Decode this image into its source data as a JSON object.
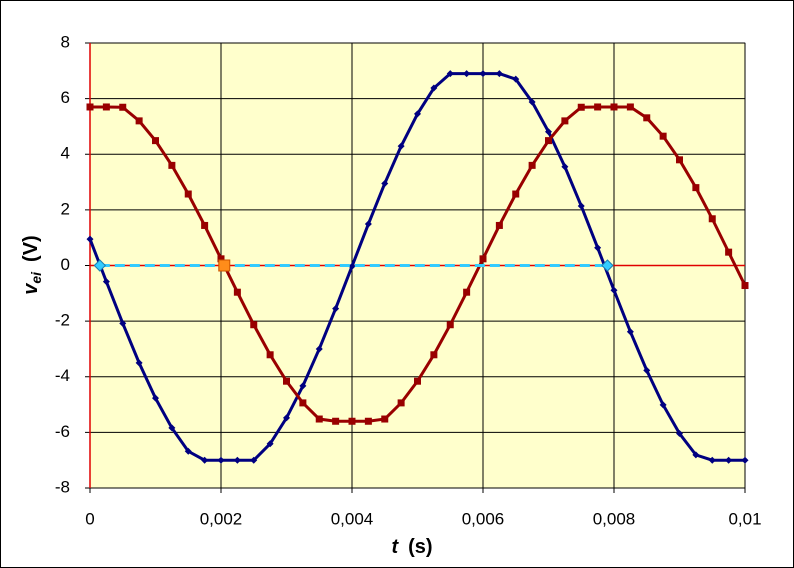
{
  "chart_data": {
    "type": "line",
    "xlabel": {
      "symbol": "t",
      "unit": "(s)"
    },
    "ylabel": {
      "symbol": "v",
      "subscript": "ei",
      "unit": "(V)"
    },
    "xlim": [
      0,
      0.01
    ],
    "ylim": [
      -8,
      8
    ],
    "xticks": [
      0,
      {
        "value": 0.002,
        "label": "0,002"
      },
      {
        "value": 0.004,
        "label": "0,004"
      },
      {
        "value": 0.006,
        "label": "0,006"
      },
      {
        "value": 0.008,
        "label": "0,008"
      },
      {
        "value": 0.01,
        "label": "0,01"
      }
    ],
    "yticks": [
      -8,
      -6,
      -4,
      -2,
      0,
      2,
      4,
      6,
      8
    ],
    "grid": true,
    "zero_line_color": "#e00000",
    "x": [
      0,
      0.00025,
      0.0005,
      0.00075,
      0.001,
      0.00125,
      0.0015,
      0.00175,
      0.002,
      0.00225,
      0.0025,
      0.00275,
      0.003,
      0.00325,
      0.0035,
      0.00375,
      0.004,
      0.00425,
      0.0045,
      0.00475,
      0.005,
      0.00525,
      0.0055,
      0.00575,
      0.006,
      0.00625,
      0.0065,
      0.00675,
      0.007,
      0.00725,
      0.0075,
      0.00775,
      0.008,
      0.00825,
      0.0085,
      0.00875,
      0.009,
      0.00925,
      0.0095,
      0.00975,
      0.01
    ],
    "series": [
      {
        "color": "#000080",
        "marker": "diamond",
        "values": [
          0.95,
          -0.58,
          -2.08,
          -3.5,
          -4.77,
          -5.84,
          -6.68,
          -7,
          -7,
          -7,
          -7,
          -6.41,
          -5.48,
          -4.33,
          -3,
          -1.55,
          -0.03,
          1.49,
          2.95,
          4.29,
          5.45,
          6.38,
          6.9,
          6.9,
          6.9,
          6.9,
          6.7,
          5.88,
          4.81,
          3.55,
          2.14,
          0.64,
          -0.89,
          -2.38,
          -3.77,
          -5.01,
          -6.04,
          -6.81,
          -7,
          -7,
          -7
        ]
      },
      {
        "color": "#990000",
        "marker": "square",
        "values": [
          5.7,
          5.7,
          5.69,
          5.2,
          4.49,
          3.6,
          2.57,
          1.44,
          0.24,
          -0.96,
          -2.13,
          -3.21,
          -4.16,
          -4.94,
          -5.52,
          -5.6,
          -5.6,
          -5.6,
          -5.52,
          -4.94,
          -4.16,
          -3.21,
          -2.13,
          -0.96,
          0.24,
          1.44,
          2.57,
          3.6,
          4.49,
          5.2,
          5.69,
          5.7,
          5.7,
          5.7,
          5.31,
          4.65,
          3.8,
          2.8,
          1.68,
          0.48,
          -0.72
        ]
      }
    ],
    "points": [
      {
        "x": 0.00015,
        "y": 0,
        "color": "#33ccff",
        "shape": "diamond"
      },
      {
        "x": 0.0079,
        "y": 0,
        "color": "#33ccff",
        "shape": "diamond"
      },
      {
        "x": 0.00205,
        "y": 0,
        "color": "#ff8c1a",
        "shape": "square"
      }
    ],
    "segment": {
      "from": 0,
      "to": 1,
      "color": "#33ccff"
    }
  }
}
